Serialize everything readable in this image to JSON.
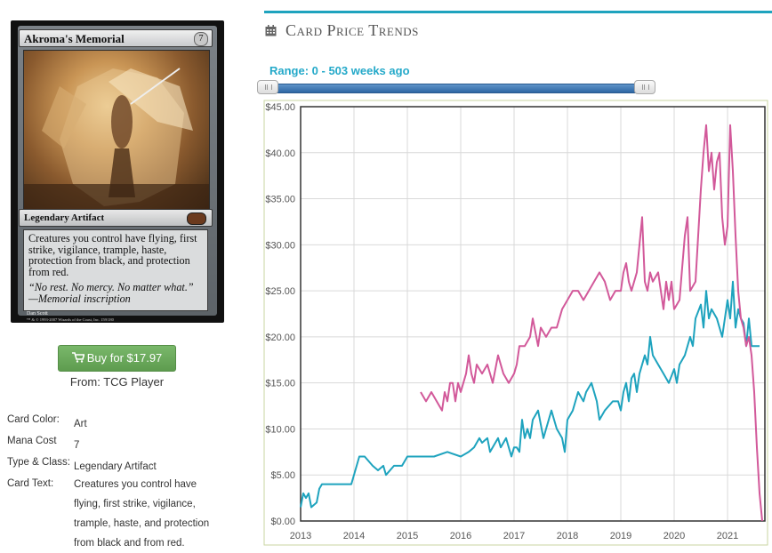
{
  "card": {
    "name": "Akroma's Memorial",
    "cost": "7",
    "type_line": "Legendary Artifact",
    "rules_text": "Creatures you control have flying, first strike, vigilance, trample, haste, protection from black, and protection from red.",
    "flavor_text": "“No rest. No mercy. No matter what.” —Memorial inscription",
    "artist": "Dan Scott",
    "copyright": "™ & © 1993-2007 Wizards of the Coast, Inc. 159/180"
  },
  "buy": {
    "label": "Buy for $17.97",
    "source": "From: TCG Player",
    "icon": "shopping-cart-icon",
    "color": "#6aaa5b"
  },
  "details": [
    {
      "label": "Card Color:",
      "value": "Art"
    },
    {
      "label": "Mana Cost",
      "value": "7"
    },
    {
      "label": "Type & Class:",
      "value": "Legendary Artifact"
    },
    {
      "label": "Card Text:",
      "value": "Creatures you control have flying, first strike, vigilance, trample, haste, and protection from black and from red."
    }
  ],
  "section": {
    "title": "Card Price Trends",
    "icon": "calendar-icon",
    "accent": "#1ea3be"
  },
  "range": {
    "label": "Range: 0 - 503 weeks ago",
    "min_weeks": 0,
    "max_weeks": 503,
    "color": "#24a9c9"
  },
  "chart_data": {
    "type": "line",
    "xlabel": "",
    "ylabel": "",
    "ylim": [
      0,
      45
    ],
    "xlim": [
      2013.0,
      2021.7
    ],
    "grid": true,
    "x_ticks": [
      "2013",
      "2014",
      "2015",
      "2016",
      "2017",
      "2018",
      "2019",
      "2020",
      "2021"
    ],
    "y_ticks": [
      "$0.00",
      "$5.00",
      "$10.00",
      "$15.00",
      "$20.00",
      "$25.00",
      "$30.00",
      "$35.00",
      "$40.00",
      "$45.00"
    ],
    "series": [
      {
        "color": "#1ea3be",
        "x": [
          2013.0,
          2013.05,
          2013.1,
          2013.15,
          2013.2,
          2013.3,
          2013.35,
          2013.4,
          2013.6,
          2013.95,
          2014.05,
          2014.1,
          2014.2,
          2014.35,
          2014.45,
          2014.55,
          2014.6,
          2014.75,
          2014.9,
          2015.0,
          2015.1,
          2015.3,
          2015.5,
          2015.75,
          2016.0,
          2016.15,
          2016.25,
          2016.35,
          2016.4,
          2016.5,
          2016.55,
          2016.7,
          2016.75,
          2016.85,
          2016.95,
          2017.0,
          2017.05,
          2017.1,
          2017.15,
          2017.2,
          2017.25,
          2017.3,
          2017.35,
          2017.45,
          2017.55,
          2017.6,
          2017.7,
          2017.75,
          2017.8,
          2017.9,
          2017.95,
          2018.0,
          2018.1,
          2018.2,
          2018.3,
          2018.35,
          2018.45,
          2018.55,
          2018.6,
          2018.7,
          2018.85,
          2018.95,
          2019.0,
          2019.05,
          2019.1,
          2019.15,
          2019.2,
          2019.25,
          2019.3,
          2019.35,
          2019.45,
          2019.5,
          2019.55,
          2019.6,
          2019.7,
          2019.8,
          2019.9,
          2020.0,
          2020.05,
          2020.1,
          2020.2,
          2020.3,
          2020.35,
          2020.4,
          2020.5,
          2020.55,
          2020.6,
          2020.65,
          2020.7,
          2020.8,
          2020.9,
          2021.0,
          2021.05,
          2021.1,
          2021.15,
          2021.2,
          2021.25,
          2021.3,
          2021.35,
          2021.4,
          2021.45,
          2021.5,
          2021.55,
          2021.6
        ],
        "values": [
          1.5,
          3,
          2.5,
          3,
          1.5,
          2,
          3.5,
          4,
          4,
          4,
          6,
          7,
          7,
          6,
          5.5,
          6,
          5,
          6,
          6,
          7,
          7,
          7,
          7,
          7.5,
          7,
          7.5,
          8,
          9,
          8.5,
          9,
          7.5,
          9,
          8,
          9,
          7,
          8,
          8,
          7.5,
          11,
          9,
          10,
          9,
          11,
          12,
          9,
          10,
          12,
          11,
          10,
          9,
          7.5,
          11,
          12,
          14,
          13,
          14,
          15,
          13,
          11,
          12,
          13,
          13,
          12,
          14,
          15,
          13,
          15.5,
          16,
          14,
          16,
          18,
          17,
          20,
          18,
          17,
          16,
          15,
          16.5,
          15,
          17,
          18,
          20,
          19,
          22,
          23.5,
          21,
          25,
          22,
          23,
          22,
          20,
          24,
          22,
          26,
          21,
          23,
          22,
          21.5,
          19,
          22,
          19,
          19,
          19,
          19
        ]
      },
      {
        "color": "#d2599a",
        "x": [
          2015.25,
          2015.35,
          2015.45,
          2015.55,
          2015.65,
          2015.7,
          2015.75,
          2015.8,
          2015.85,
          2015.9,
          2015.95,
          2016.0,
          2016.1,
          2016.15,
          2016.2,
          2016.25,
          2016.3,
          2016.4,
          2016.5,
          2016.6,
          2016.7,
          2016.8,
          2016.9,
          2017.0,
          2017.05,
          2017.1,
          2017.2,
          2017.3,
          2017.35,
          2017.45,
          2017.5,
          2017.6,
          2017.7,
          2017.8,
          2017.9,
          2018.0,
          2018.1,
          2018.2,
          2018.3,
          2018.4,
          2018.5,
          2018.6,
          2018.7,
          2018.75,
          2018.8,
          2018.9,
          2019.0,
          2019.05,
          2019.1,
          2019.15,
          2019.2,
          2019.3,
          2019.4,
          2019.45,
          2019.5,
          2019.55,
          2019.6,
          2019.7,
          2019.8,
          2019.85,
          2019.9,
          2019.95,
          2020.0,
          2020.1,
          2020.2,
          2020.25,
          2020.3,
          2020.4,
          2020.45,
          2020.5,
          2020.55,
          2020.6,
          2020.65,
          2020.7,
          2020.75,
          2020.8,
          2020.85,
          2020.9,
          2020.95,
          2021.0,
          2021.05,
          2021.1,
          2021.15,
          2021.2,
          2021.25,
          2021.3,
          2021.35,
          2021.4,
          2021.45,
          2021.5,
          2021.55,
          2021.6,
          2021.65
        ],
        "values": [
          14,
          13,
          14,
          13,
          12,
          14,
          13,
          15,
          15,
          13,
          15,
          14,
          16,
          18,
          16,
          15,
          17,
          16,
          17,
          15,
          18,
          16,
          15,
          16,
          17,
          19,
          19,
          20,
          22,
          19,
          21,
          20,
          21,
          21,
          23,
          24,
          25,
          25,
          24,
          25,
          26,
          27,
          26,
          25,
          24,
          25,
          25,
          27,
          28,
          26,
          25,
          27,
          33,
          26,
          25,
          27,
          26,
          27,
          23,
          26,
          24,
          26,
          23,
          24,
          31,
          33,
          25,
          26,
          31,
          36,
          40,
          43,
          38,
          40,
          36,
          39,
          40,
          33,
          30,
          32,
          43,
          38,
          31,
          25,
          22,
          21,
          19,
          20,
          18,
          14,
          8,
          3,
          0
        ]
      }
    ]
  }
}
